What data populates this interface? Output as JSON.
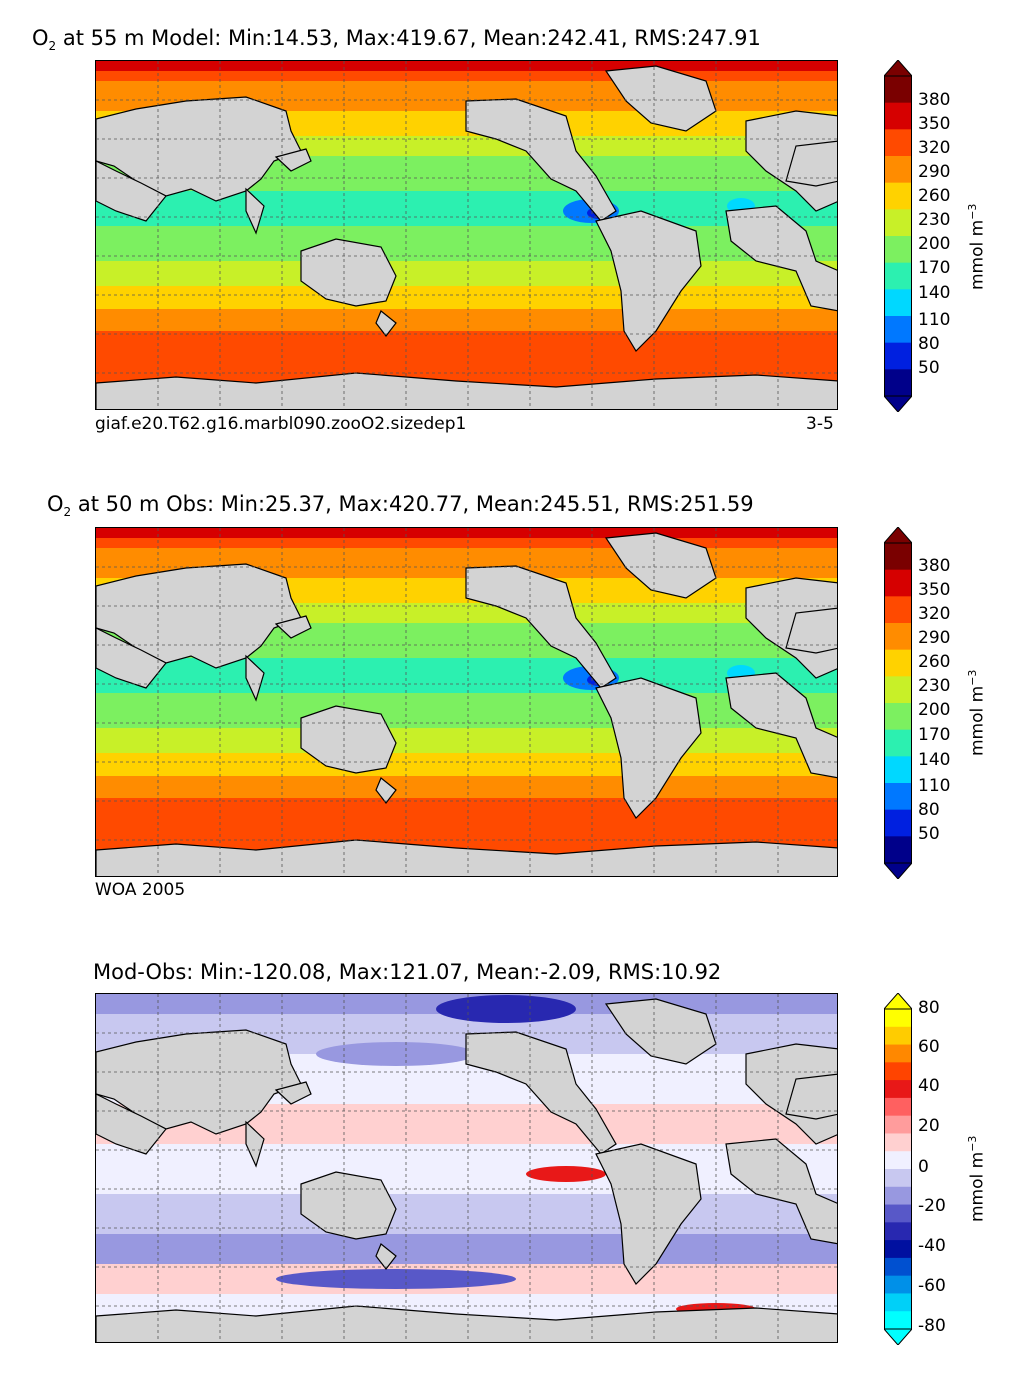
{
  "chart_data": [
    {
      "type": "heatmap",
      "panel": "model",
      "title_species": "O",
      "title_sub": "2",
      "title_rest": " at 55 m Model: Min:14.53, Max:419.67, Mean:242.41, RMS:247.91",
      "caption_left": "giaf.e20.T62.g16.marbl090.zooO2.sizedep1",
      "caption_right": "3-5",
      "colorbar": {
        "ticks": [
          "380",
          "350",
          "320",
          "290",
          "260",
          "230",
          "200",
          "170",
          "140",
          "110",
          "80",
          "50"
        ],
        "unit_text": "mmol m",
        "unit_sup": "−3",
        "colors": [
          "#7a0000",
          "#d60000",
          "#ff4a00",
          "#ff8c00",
          "#ffd200",
          "#c8f028",
          "#7cf060",
          "#2cf0b0",
          "#00d8ff",
          "#0078ff",
          "#0020e0",
          "#00008a"
        ]
      }
    },
    {
      "type": "heatmap",
      "panel": "observed",
      "title_species": "O",
      "title_sub": "2",
      "title_rest": " at 50 m Obs: Min:25.37, Max:420.77, Mean:245.51, RMS:251.59",
      "caption_left": "WOA 2005",
      "colorbar": {
        "ticks": [
          "380",
          "350",
          "320",
          "290",
          "260",
          "230",
          "200",
          "170",
          "140",
          "110",
          "80",
          "50"
        ],
        "unit_text": "mmol m",
        "unit_sup": "−3",
        "colors": [
          "#7a0000",
          "#d60000",
          "#ff4a00",
          "#ff8c00",
          "#ffd200",
          "#c8f028",
          "#7cf060",
          "#2cf0b0",
          "#00d8ff",
          "#0078ff",
          "#0020e0",
          "#00008a"
        ]
      }
    },
    {
      "type": "heatmap",
      "panel": "difference",
      "title_rest": "Mod-Obs: Min:-120.08, Max:121.07, Mean:-2.09, RMS:10.92",
      "colorbar": {
        "ticks": [
          "80",
          "60",
          "40",
          "20",
          "0",
          "-20",
          "-40",
          "-60",
          "-80"
        ],
        "unit_text": "mmol m",
        "unit_sup": "−3",
        "colors": [
          "#ffff00",
          "#ffcc00",
          "#ff8800",
          "#ff4400",
          "#e81818",
          "#ff6060",
          "#ff9c9c",
          "#ffd0d0",
          "#f0f0ff",
          "#c8c8f0",
          "#9898e0",
          "#5858c8",
          "#2828b0",
          "#0010a0",
          "#0050d0",
          "#0090e8",
          "#00d0f8",
          "#00ffff"
        ]
      }
    }
  ],
  "map_colors": {
    "land": "#d3d3d3",
    "grid": "#555555"
  }
}
